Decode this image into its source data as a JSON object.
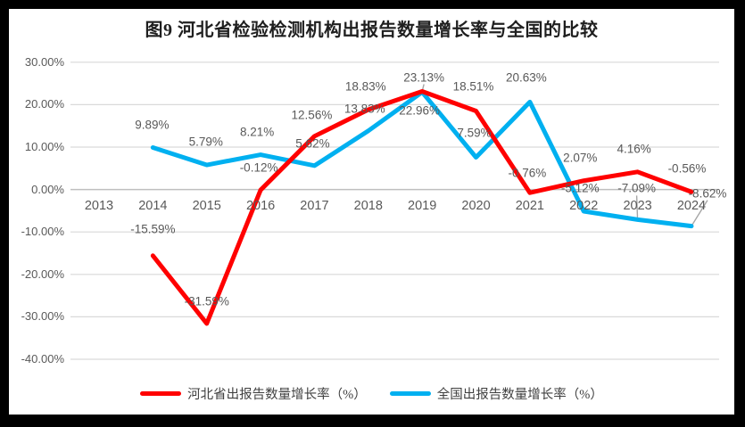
{
  "title": "图9 河北省检验检测机构出报告数量增长率与全国的比较",
  "colors": {
    "frame": "#000000",
    "background": "#ffffff",
    "title_text": "#1f1f1f",
    "hebei_line": "#ff0000",
    "national_line": "#00b0f0",
    "gridline": "#d9d9d9",
    "axis_line": "#bfbfbf",
    "tick_text": "#595959",
    "leader_line": "#a6a6a6"
  },
  "chart_data": {
    "type": "line",
    "title": "图9 河北省检验检测机构出报告数量增长率与全国的比较",
    "categories": [
      "2013",
      "2014",
      "2015",
      "2016",
      "2017",
      "2018",
      "2019",
      "2020",
      "2021",
      "2022",
      "2023",
      "2024"
    ],
    "series": [
      {
        "name": "河北省出报告数量增长率（%）",
        "color": "#ff0000",
        "values": [
          null,
          -15.59,
          -31.59,
          -0.12,
          12.56,
          18.83,
          23.13,
          18.51,
          -0.76,
          2.07,
          4.16,
          -0.56
        ],
        "data_labels": [
          null,
          "-15.59%",
          "-31.59%",
          "-0.12%",
          "12.56%",
          "18.83%",
          "23.13%",
          "18.51%",
          "-0.76%",
          "2.07%",
          "4.16%",
          "-0.56%"
        ],
        "label_offsets": [
          null,
          [
            0,
            -30
          ],
          [
            0,
            -25
          ],
          [
            -2,
            -25
          ],
          [
            -3,
            -24
          ],
          [
            -3,
            -26
          ],
          [
            2,
            -16
          ],
          [
            -3,
            -27
          ],
          [
            -3,
            -22
          ],
          [
            -4,
            -26
          ],
          [
            -4,
            -26
          ],
          [
            -5,
            -26
          ]
        ],
        "leader_indices": [
          6
        ]
      },
      {
        "name": "全国出报告数量增长率（%）",
        "color": "#00b0f0",
        "values": [
          null,
          9.89,
          5.79,
          8.21,
          5.62,
          13.83,
          22.96,
          7.59,
          20.63,
          -5.12,
          -7.09,
          -8.62
        ],
        "data_labels": [
          null,
          "9.89%",
          "5.79%",
          "8.21%",
          "5.62%",
          "13.83%",
          "22.96%",
          "7.59%",
          "20.63%",
          "-5.12%",
          "-7.09%",
          "-8.62%"
        ],
        "label_offsets": [
          null,
          [
            -1,
            -26
          ],
          [
            -1,
            -26
          ],
          [
            -4,
            -26
          ],
          [
            -2,
            -25
          ],
          [
            -4,
            -25
          ],
          [
            -3,
            21
          ],
          [
            -2,
            -27
          ],
          [
            -4,
            -27
          ],
          [
            -4,
            -26
          ],
          [
            -1,
            -35
          ],
          [
            18,
            -37
          ]
        ],
        "leader_indices": [
          10,
          11
        ]
      }
    ],
    "xlabel": "",
    "ylabel": "",
    "y_ticks": [
      "30.00%",
      "20.00%",
      "10.00%",
      "0.00%",
      "-10.00%",
      "-20.00%",
      "-30.00%",
      "-40.00%"
    ],
    "ylim": [
      -40,
      30
    ],
    "grid": true,
    "legend_position": "bottom"
  }
}
